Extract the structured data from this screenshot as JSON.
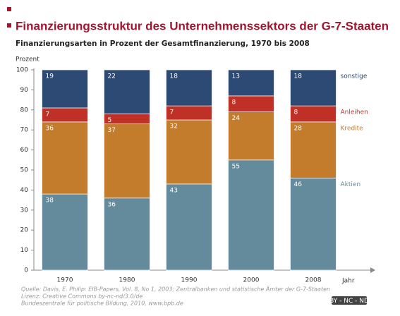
{
  "chart_data": {
    "type": "stacked_bar",
    "title": "Finanzierungsstruktur des Unternehmenssektors der G-7-Staaten",
    "subtitle": "Finanzierungsarten in Prozent der Gesamtfinanzierung, 1970 bis 2008",
    "y_label": "Prozent",
    "x_label": "Jahr",
    "categories": [
      "1970",
      "1980",
      "1990",
      "2000",
      "2008"
    ],
    "series": [
      {
        "name": "Aktien",
        "color": "#648b9c",
        "values": [
          38,
          36,
          43,
          55,
          46
        ]
      },
      {
        "name": "Kredite",
        "color": "#c27c2c",
        "values": [
          36,
          37,
          32,
          24,
          28
        ]
      },
      {
        "name": "Anleihen",
        "color": "#bf3127",
        "values": [
          7,
          5,
          7,
          8,
          8
        ]
      },
      {
        "name": "sonstige",
        "color": "#2d4a74",
        "values": [
          19,
          22,
          18,
          13,
          18
        ]
      }
    ],
    "ylim": [
      0,
      100
    ],
    "yticks": [
      0,
      10,
      20,
      30,
      40,
      50,
      60,
      70,
      80,
      90,
      100
    ],
    "source": [
      "Quelle: Davis, E. Philip: EIB-Papers, Vol. 8, No 1, 2003; Zentralbanken und statistische Ämter der G-7-Staaten",
      "Lizenz: Creative Commons by-nc-nd/3.0/de",
      "Bundeszentrale für politische Bildung, 2010, www.bpb.de"
    ],
    "license_badge": "BY - NC - ND"
  }
}
